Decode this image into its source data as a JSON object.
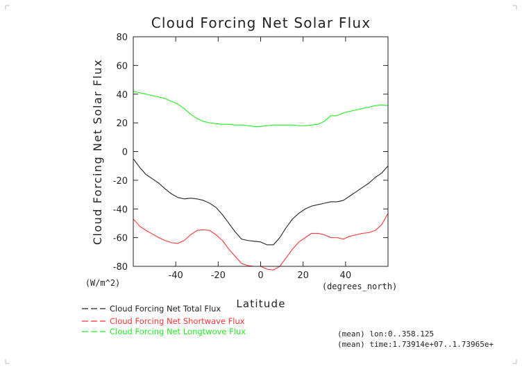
{
  "chart_data": {
    "type": "line",
    "title": "Cloud Forcing Net Solar Flux",
    "ylabel": "Cloud Forcing Net Solar Flux",
    "yunits": "(W/m^2)",
    "xlabel": "Latitude",
    "xunits": "(degrees_north)",
    "xlim": [
      -60,
      60
    ],
    "ylim": [
      -80,
      80
    ],
    "xticks": [
      -40,
      -20,
      0,
      20,
      40
    ],
    "yticks": [
      80,
      60,
      40,
      20,
      0,
      -20,
      -40,
      -60,
      -80
    ],
    "grid": false,
    "legend_position": "bottom-left",
    "series": [
      {
        "name": "Cloud Forcing Net Total Flux",
        "color": "#222222",
        "x": [
          -60,
          -57,
          -54,
          -51,
          -48,
          -45,
          -42,
          -39,
          -36,
          -33,
          -30,
          -27,
          -24,
          -21,
          -18,
          -15,
          -12,
          -9,
          -6,
          -3,
          0,
          3,
          6,
          9,
          12,
          15,
          18,
          21,
          24,
          27,
          30,
          33,
          36,
          39,
          42,
          45,
          48,
          51,
          54,
          57,
          60
        ],
        "y": [
          -5,
          -11,
          -16,
          -19,
          -22,
          -26,
          -29.5,
          -32,
          -33,
          -32.5,
          -33,
          -34,
          -36,
          -39,
          -44,
          -50,
          -56,
          -61,
          -62,
          -62.5,
          -63,
          -65,
          -65,
          -60,
          -53,
          -47,
          -43,
          -40,
          -38,
          -37,
          -36,
          -35,
          -35,
          -34,
          -31,
          -28,
          -25,
          -22,
          -18,
          -15,
          -10
        ]
      },
      {
        "name": "Cloud Forcing Net Shortwave Flux",
        "color": "#ff3333",
        "x": [
          -60,
          -57,
          -54,
          -51,
          -48,
          -45,
          -42,
          -39,
          -36,
          -33,
          -30,
          -27,
          -24,
          -21,
          -18,
          -15,
          -12,
          -9,
          -6,
          -3,
          0,
          3,
          6,
          9,
          12,
          15,
          18,
          21,
          24,
          27,
          30,
          33,
          36,
          39,
          42,
          45,
          48,
          51,
          54,
          57,
          60
        ],
        "y": [
          -47,
          -52,
          -55,
          -57.5,
          -60,
          -62,
          -63.5,
          -64,
          -62,
          -58,
          -55,
          -54.5,
          -55,
          -58,
          -62,
          -68,
          -73,
          -78,
          -79.5,
          -80,
          -80,
          -82,
          -82.5,
          -80,
          -74,
          -68,
          -63,
          -60,
          -57,
          -57,
          -58,
          -60,
          -60,
          -61,
          -59,
          -58,
          -57,
          -56.5,
          -55,
          -51,
          -43
        ]
      },
      {
        "name": "Cloud Forcing Net Longtwove Flux",
        "color": "#22ee22",
        "x": [
          -60,
          -57,
          -54,
          -51,
          -48,
          -45,
          -42,
          -39,
          -36,
          -33,
          -30,
          -27,
          -24,
          -21,
          -18,
          -15,
          -12,
          -9,
          -6,
          -3,
          0,
          3,
          6,
          9,
          12,
          15,
          18,
          21,
          24,
          27,
          30,
          33,
          36,
          39,
          42,
          45,
          48,
          51,
          54,
          57,
          60
        ],
        "y": [
          42,
          41,
          40,
          39,
          38,
          37,
          35,
          33,
          30,
          26,
          23,
          21,
          20,
          19.5,
          19,
          19,
          18.5,
          18.5,
          18,
          17.5,
          17.5,
          18,
          18.5,
          18.5,
          18.5,
          18.5,
          18,
          18,
          18.5,
          19,
          21,
          25,
          25,
          27,
          28,
          29,
          30,
          31,
          32,
          32.5,
          32
        ]
      }
    ],
    "annotations": [
      "(mean) lon:0..358.125",
      "(mean) time:1.73914e+07..1.73965e+"
    ]
  }
}
